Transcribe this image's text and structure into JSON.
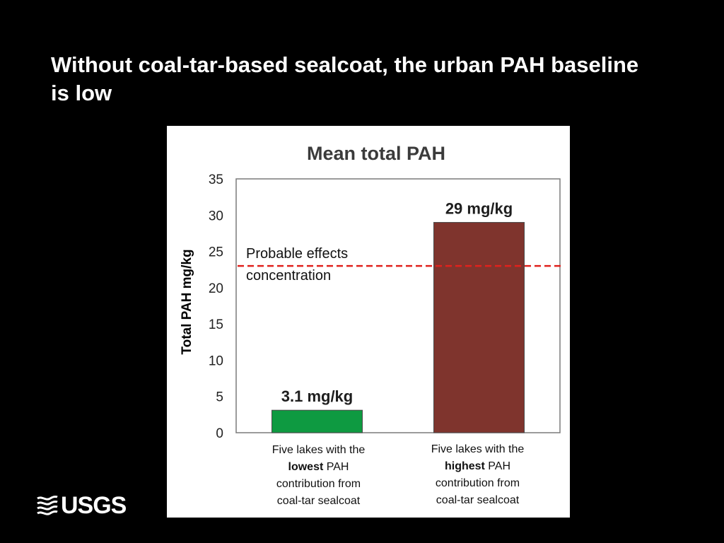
{
  "slide": {
    "title": "Without coal-tar-based sealcoat, the urban PAH baseline is low"
  },
  "logo": {
    "text": "USGS",
    "icon": "usgs-wave-icon"
  },
  "chart_data": {
    "type": "bar",
    "title": "Mean total PAH",
    "ylabel": "Total PAH mg/kg",
    "xlabel": "",
    "ylim": [
      0,
      35
    ],
    "yticks": [
      0,
      5,
      10,
      15,
      20,
      25,
      30,
      35
    ],
    "grid": false,
    "categories": [
      {
        "lines": [
          [
            {
              "t": "Five lakes with the",
              "b": false
            }
          ],
          [
            {
              "t": "lowest",
              "b": true
            },
            {
              "t": " PAH",
              "b": false
            }
          ],
          [
            {
              "t": "contribution from",
              "b": false
            }
          ],
          [
            {
              "t": "coal-tar sealcoat",
              "b": false
            }
          ]
        ]
      },
      {
        "lines": [
          [
            {
              "t": "Five lakes with the",
              "b": false
            }
          ],
          [
            {
              "t": "highest",
              "b": true
            },
            {
              "t": " PAH",
              "b": false
            }
          ],
          [
            {
              "t": "contribution from",
              "b": false
            }
          ],
          [
            {
              "t": "coal-tar sealcoat",
              "b": false
            }
          ]
        ]
      }
    ],
    "values": [
      3.1,
      29
    ],
    "data_labels": [
      "3.1 mg/kg",
      "29 mg/kg"
    ],
    "colors": [
      "#0e9a41",
      "#7f342d"
    ],
    "reference_line": {
      "value": 23,
      "label_lines": [
        "Probable effects",
        "concentration"
      ],
      "color": "#e0211d",
      "style": "dashed"
    }
  }
}
